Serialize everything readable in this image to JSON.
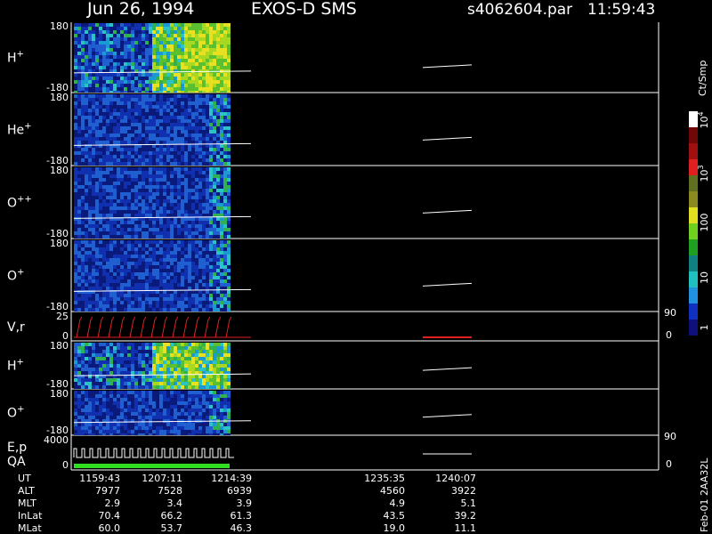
{
  "header": {
    "date": "Jun 26, 1994",
    "instrument": "EXOS-D SMS",
    "file": "s4062604.par",
    "time": "11:59:43"
  },
  "panels": [
    {
      "label": "H",
      "sup": "+",
      "top": "180",
      "bottom": "-180"
    },
    {
      "label": "He",
      "sup": "+",
      "top": "180",
      "bottom": "-180"
    },
    {
      "label": "O",
      "sup": "++",
      "top": "180",
      "bottom": "-180"
    },
    {
      "label": "O",
      "sup": "+",
      "top": "180",
      "bottom": "-180"
    },
    {
      "label": "V,r",
      "top": "25",
      "bottom": "0",
      "right_top": "90",
      "right_bottom": "0"
    },
    {
      "label": "H",
      "sup": "+",
      "top": "180",
      "bottom": "-180"
    },
    {
      "label": "O",
      "sup": "+",
      "top": "180",
      "bottom": "-180"
    },
    {
      "label": "E,p",
      "label2": "QA",
      "top": "4000",
      "bottom": "0",
      "right_top": "90",
      "right_bottom": "0"
    }
  ],
  "colorbar": {
    "unit": "Ct/Smp",
    "labels": [
      {
        "base": "10",
        "sup": "4"
      },
      {
        "base": "10",
        "sup": "3"
      },
      {
        "base": "100"
      },
      {
        "base": "10"
      },
      {
        "base": "1"
      }
    ]
  },
  "footer": {
    "rows": [
      {
        "name": "UT",
        "values": [
          "1159:43",
          "1207:11",
          "1214:39",
          "1235:35",
          "1240:07"
        ]
      },
      {
        "name": "ALT",
        "values": [
          "7977",
          "7528",
          "6939",
          "4560",
          "3922"
        ]
      },
      {
        "name": "MLT",
        "values": [
          "2.9",
          "3.4",
          "3.9",
          "4.9",
          "5.1"
        ]
      },
      {
        "name": "InLat",
        "values": [
          "70.4",
          "66.2",
          "61.3",
          "43.5",
          "39.2"
        ]
      },
      {
        "name": "MLat",
        "values": [
          "60.0",
          "53.7",
          "46.3",
          "19.0",
          "11.1"
        ]
      }
    ]
  },
  "side_label": "Feb-01 2AA32L"
}
